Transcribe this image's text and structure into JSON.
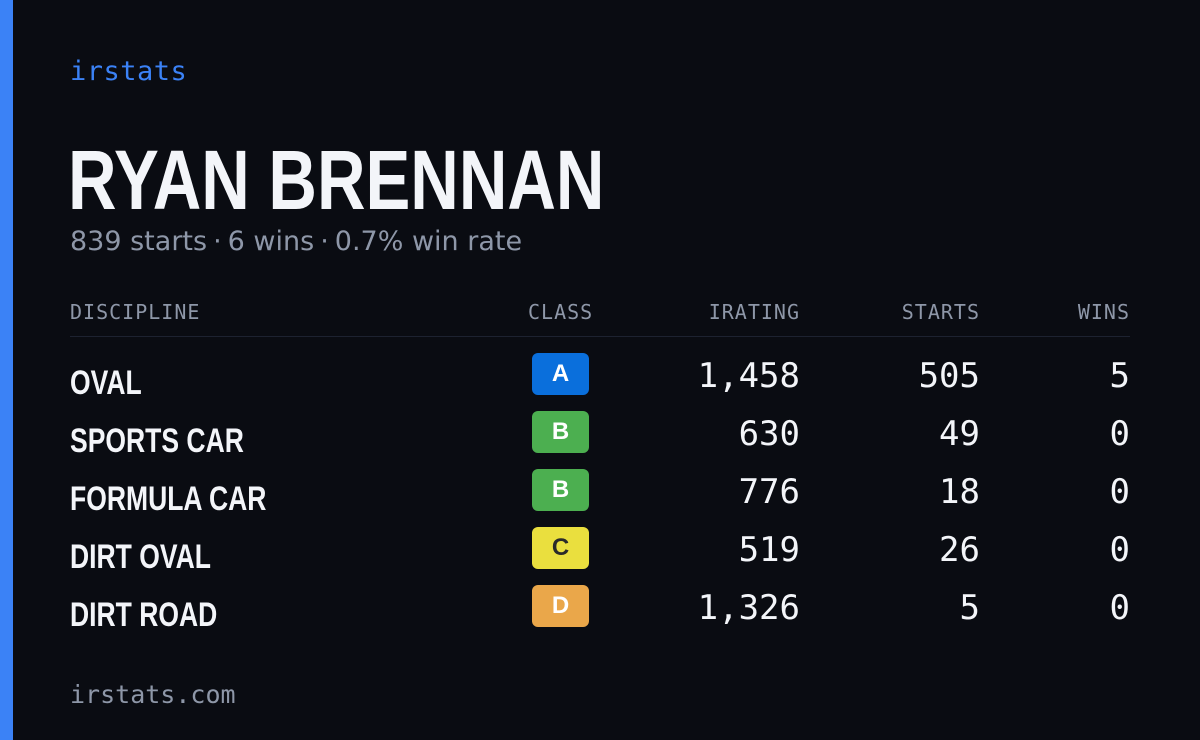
{
  "brand": "irstats",
  "driver": {
    "name": "RYAN BRENNAN",
    "starts": "839 starts",
    "wins": "6 wins",
    "win_rate": "0.7% win rate",
    "separator": "·"
  },
  "table": {
    "headers": {
      "discipline": "DISCIPLINE",
      "class": "CLASS",
      "irating": "IRATING",
      "starts": "STARTS",
      "wins": "WINS"
    },
    "rows": [
      {
        "discipline": "OVAL",
        "class": "A",
        "class_color": "#0a6fdc",
        "class_text_color": "#ffffff",
        "irating": "1,458",
        "starts": "505",
        "wins": "5"
      },
      {
        "discipline": "SPORTS CAR",
        "class": "B",
        "class_color": "#4caf50",
        "class_text_color": "#ffffff",
        "irating": "630",
        "starts": "49",
        "wins": "0"
      },
      {
        "discipline": "FORMULA CAR",
        "class": "B",
        "class_color": "#4caf50",
        "class_text_color": "#ffffff",
        "irating": "776",
        "starts": "18",
        "wins": "0"
      },
      {
        "discipline": "DIRT OVAL",
        "class": "C",
        "class_color": "#eadf3e",
        "class_text_color": "#2a2a2a",
        "irating": "519",
        "starts": "26",
        "wins": "0"
      },
      {
        "discipline": "DIRT ROAD",
        "class": "D",
        "class_color": "#eaa74a",
        "class_text_color": "#ffffff",
        "irating": "1,326",
        "starts": "5",
        "wins": "0"
      }
    ]
  },
  "footer": "irstats.com",
  "colors": {
    "accent": "#3b82f6",
    "background": "#0a0c12",
    "muted_text": "#8e97a8"
  }
}
